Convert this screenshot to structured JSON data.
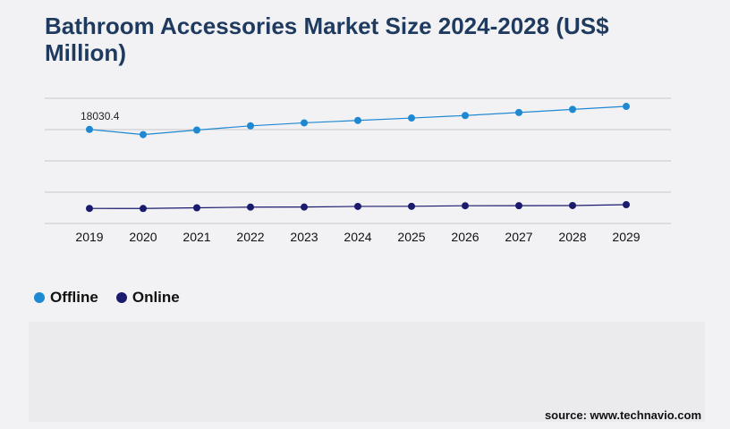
{
  "title": "Bathroom Accessories Market Size 2024-2028 (US$ Million)",
  "source": "source: www.technavio.com",
  "colors": {
    "offline": "#1e88d2",
    "online": "#1a1a6e",
    "grid": "#c8c8cc",
    "text": "#111111"
  },
  "chart_data": {
    "type": "line",
    "title": "Bathroom Accessories Market Size 2024-2028 (US$ Million)",
    "categories": [
      "2019",
      "2020",
      "2021",
      "2022",
      "2023",
      "2024",
      "2025",
      "2026",
      "2027",
      "2028",
      "2029"
    ],
    "series": [
      {
        "name": "Offline",
        "color": "#1e88d2",
        "values": [
          18030.4,
          17200,
          17930,
          18600,
          19080,
          19460,
          19850,
          20250,
          20730,
          21230,
          21710
        ]
      },
      {
        "name": "Online",
        "color": "#1a1a6e",
        "values": [
          5400,
          5390,
          5500,
          5610,
          5620,
          5720,
          5740,
          5830,
          5840,
          5860,
          6000
        ]
      }
    ],
    "data_labels": [
      {
        "series": "Offline",
        "category": "2019",
        "text": "18030.4"
      }
    ],
    "ylim": [
      3000,
      23000
    ],
    "grid": true,
    "y_tick_labels_visible": false,
    "legend_position": "bottom-left"
  }
}
